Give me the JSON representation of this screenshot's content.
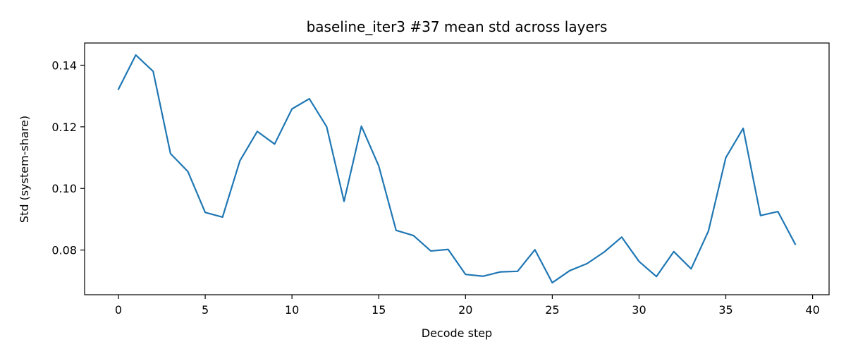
{
  "chart_data": {
    "type": "line",
    "title": "baseline_iter3 #37 mean std across layers",
    "xlabel": "Decode step",
    "ylabel": "Std (system-share)",
    "xlim": [
      -1.95,
      40.95
    ],
    "ylim": [
      0.0655,
      0.1472
    ],
    "xticks": [
      0,
      5,
      10,
      15,
      20,
      25,
      30,
      35,
      40
    ],
    "xtick_labels": [
      "0",
      "5",
      "10",
      "15",
      "20",
      "25",
      "30",
      "35",
      "40"
    ],
    "yticks": [
      0.08,
      0.1,
      0.12,
      0.14
    ],
    "ytick_labels": [
      "0.08",
      "0.10",
      "0.12",
      "0.14"
    ],
    "grid": false,
    "line_color": "#1f77b4",
    "series": [
      {
        "x": [
          0,
          1,
          2,
          3,
          4,
          5,
          6,
          7,
          8,
          9,
          10,
          11,
          12,
          13,
          14,
          15,
          16,
          17,
          18,
          19,
          20,
          21,
          22,
          23,
          24,
          25,
          26,
          27,
          28,
          29,
          30,
          31,
          32,
          33,
          34,
          35,
          36,
          37,
          38,
          39
        ],
        "values": [
          0.1322,
          0.1433,
          0.138,
          0.1113,
          0.1055,
          0.0922,
          0.0907,
          0.109,
          0.1185,
          0.1144,
          0.1258,
          0.1291,
          0.12,
          0.0958,
          0.1202,
          0.1073,
          0.0864,
          0.0847,
          0.0797,
          0.0802,
          0.0721,
          0.0715,
          0.0729,
          0.0731,
          0.0801,
          0.0694,
          0.0733,
          0.0756,
          0.0794,
          0.0842,
          0.0763,
          0.0714,
          0.0795,
          0.0739,
          0.0862,
          0.11,
          0.1195,
          0.0912,
          0.0925,
          0.0819
        ]
      }
    ]
  }
}
